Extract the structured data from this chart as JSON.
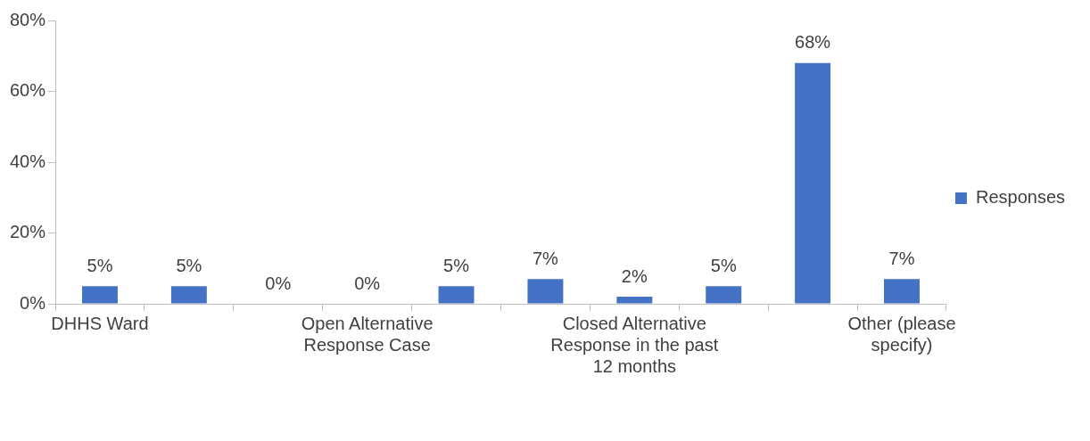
{
  "chart_data": {
    "type": "bar",
    "categories": [
      "DHHS Ward",
      null,
      null,
      "Open Alternative Response Case",
      null,
      null,
      "Closed Alternative Response in the past 12 months",
      null,
      null,
      "Other (please specify)"
    ],
    "series": [
      {
        "name": "Responses",
        "color": "#4472c4",
        "values": [
          5,
          5,
          0,
          0,
          5,
          7,
          2,
          5,
          68,
          7
        ],
        "value_labels": [
          "5%",
          "5%",
          "0%",
          "0%",
          "5%",
          "7%",
          "2%",
          "5%",
          "68%",
          "7%"
        ]
      }
    ],
    "ylim": [
      0,
      80
    ],
    "yticks": [
      {
        "value": 0,
        "label": "0%"
      },
      {
        "value": 20,
        "label": "20%"
      },
      {
        "value": 40,
        "label": "40%"
      },
      {
        "value": 60,
        "label": "60%"
      },
      {
        "value": 80,
        "label": "80%"
      }
    ],
    "grid": false,
    "legend": "right"
  }
}
